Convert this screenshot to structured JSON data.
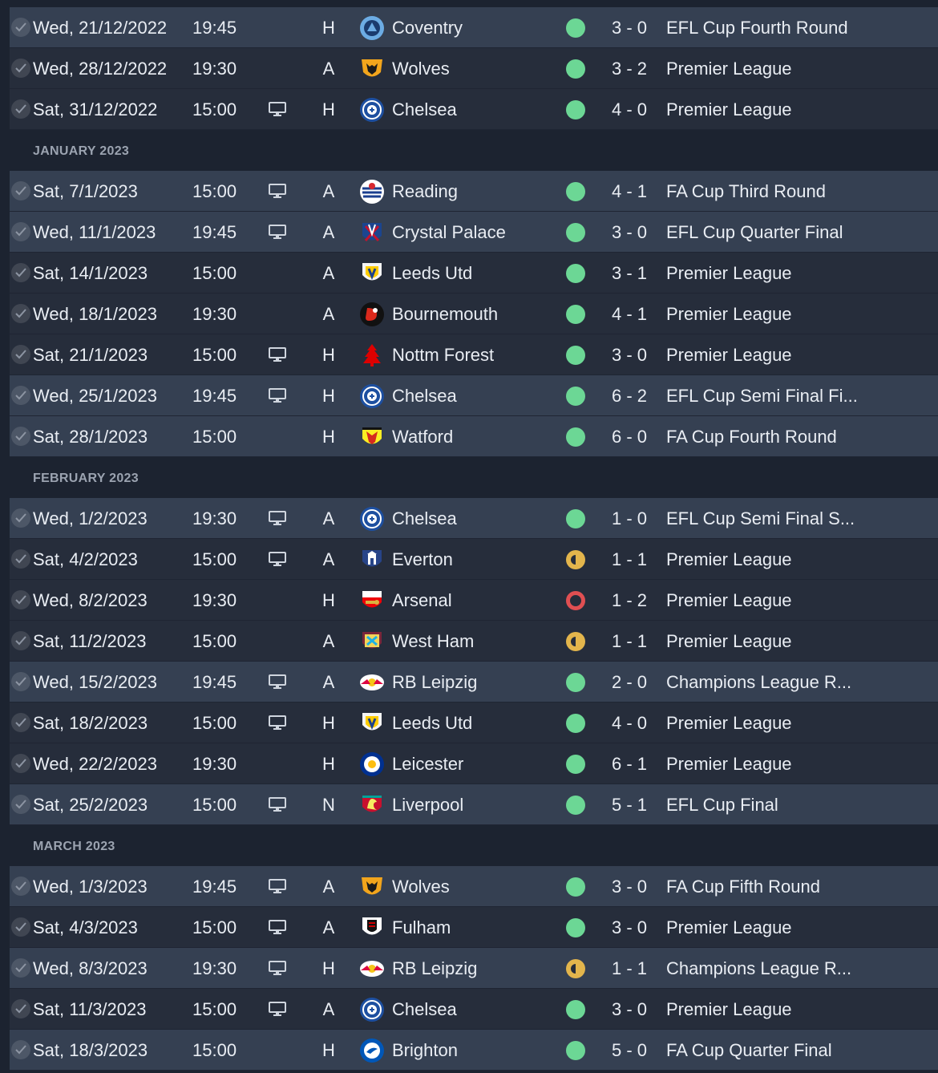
{
  "colors": {
    "win": "#6cd795",
    "draw": "#e3b54c",
    "loss": "#e04f52",
    "row": "#262d3b",
    "row_highlight": "#354052",
    "background": "#1c2330"
  },
  "entries": [
    {
      "kind": "match",
      "date": "Wed, 21/12/2022",
      "time": "19:45",
      "tv": false,
      "venue": "H",
      "crest": "coventry-crest",
      "team": "Coventry",
      "result": "win",
      "score": "3 - 0",
      "competition": "EFL Cup Fourth Round",
      "highlight": true
    },
    {
      "kind": "match",
      "date": "Wed, 28/12/2022",
      "time": "19:30",
      "tv": false,
      "venue": "A",
      "crest": "wolves-crest",
      "team": "Wolves",
      "result": "win",
      "score": "3 - 2",
      "competition": "Premier League",
      "highlight": false
    },
    {
      "kind": "match",
      "date": "Sat, 31/12/2022",
      "time": "15:00",
      "tv": true,
      "venue": "H",
      "crest": "chelsea-crest",
      "team": "Chelsea",
      "result": "win",
      "score": "4 - 0",
      "competition": "Premier League",
      "highlight": false
    },
    {
      "kind": "header",
      "label": "JANUARY 2023"
    },
    {
      "kind": "match",
      "date": "Sat, 7/1/2023",
      "time": "15:00",
      "tv": true,
      "venue": "A",
      "crest": "reading-crest",
      "team": "Reading",
      "result": "win",
      "score": "4 - 1",
      "competition": "FA Cup Third Round",
      "highlight": true
    },
    {
      "kind": "match",
      "date": "Wed, 11/1/2023",
      "time": "19:45",
      "tv": true,
      "venue": "A",
      "crest": "crystal-palace-crest",
      "team": "Crystal Palace",
      "result": "win",
      "score": "3 - 0",
      "competition": "EFL Cup Quarter Final",
      "highlight": true
    },
    {
      "kind": "match",
      "date": "Sat, 14/1/2023",
      "time": "15:00",
      "tv": false,
      "venue": "A",
      "crest": "leeds-crest",
      "team": "Leeds Utd",
      "result": "win",
      "score": "3 - 1",
      "competition": "Premier League",
      "highlight": false
    },
    {
      "kind": "match",
      "date": "Wed, 18/1/2023",
      "time": "19:30",
      "tv": false,
      "venue": "A",
      "crest": "bournemouth-crest",
      "team": "Bournemouth",
      "result": "win",
      "score": "4 - 1",
      "competition": "Premier League",
      "highlight": false
    },
    {
      "kind": "match",
      "date": "Sat, 21/1/2023",
      "time": "15:00",
      "tv": true,
      "venue": "H",
      "crest": "nottm-forest-crest",
      "team": "Nottm Forest",
      "result": "win",
      "score": "3 - 0",
      "competition": "Premier League",
      "highlight": false
    },
    {
      "kind": "match",
      "date": "Wed, 25/1/2023",
      "time": "19:45",
      "tv": true,
      "venue": "H",
      "crest": "chelsea-crest",
      "team": "Chelsea",
      "result": "win",
      "score": "6 - 2",
      "competition": "EFL Cup Semi Final Fi...",
      "highlight": true
    },
    {
      "kind": "match",
      "date": "Sat, 28/1/2023",
      "time": "15:00",
      "tv": false,
      "venue": "H",
      "crest": "watford-crest",
      "team": "Watford",
      "result": "win",
      "score": "6 - 0",
      "competition": "FA Cup Fourth Round",
      "highlight": true
    },
    {
      "kind": "header",
      "label": "FEBRUARY 2023"
    },
    {
      "kind": "match",
      "date": "Wed, 1/2/2023",
      "time": "19:30",
      "tv": true,
      "venue": "A",
      "crest": "chelsea-crest",
      "team": "Chelsea",
      "result": "win",
      "score": "1 - 0",
      "competition": "EFL Cup Semi Final S...",
      "highlight": true
    },
    {
      "kind": "match",
      "date": "Sat, 4/2/2023",
      "time": "15:00",
      "tv": true,
      "venue": "A",
      "crest": "everton-crest",
      "team": "Everton",
      "result": "draw",
      "score": "1 - 1",
      "competition": "Premier League",
      "highlight": false
    },
    {
      "kind": "match",
      "date": "Wed, 8/2/2023",
      "time": "19:30",
      "tv": false,
      "venue": "H",
      "crest": "arsenal-crest",
      "team": "Arsenal",
      "result": "loss",
      "score": "1 - 2",
      "competition": "Premier League",
      "highlight": false
    },
    {
      "kind": "match",
      "date": "Sat, 11/2/2023",
      "time": "15:00",
      "tv": false,
      "venue": "A",
      "crest": "west-ham-crest",
      "team": "West Ham",
      "result": "draw",
      "score": "1 - 1",
      "competition": "Premier League",
      "highlight": false
    },
    {
      "kind": "match",
      "date": "Wed, 15/2/2023",
      "time": "19:45",
      "tv": true,
      "venue": "A",
      "crest": "rb-leipzig-crest",
      "team": "RB Leipzig",
      "result": "win",
      "score": "2 - 0",
      "competition": "Champions League R...",
      "highlight": true
    },
    {
      "kind": "match",
      "date": "Sat, 18/2/2023",
      "time": "15:00",
      "tv": true,
      "venue": "H",
      "crest": "leeds-crest",
      "team": "Leeds Utd",
      "result": "win",
      "score": "4 - 0",
      "competition": "Premier League",
      "highlight": false
    },
    {
      "kind": "match",
      "date": "Wed, 22/2/2023",
      "time": "19:30",
      "tv": false,
      "venue": "H",
      "crest": "leicester-crest",
      "team": "Leicester",
      "result": "win",
      "score": "6 - 1",
      "competition": "Premier League",
      "highlight": false
    },
    {
      "kind": "match",
      "date": "Sat, 25/2/2023",
      "time": "15:00",
      "tv": true,
      "venue": "N",
      "crest": "liverpool-crest",
      "team": "Liverpool",
      "result": "win",
      "score": "5 - 1",
      "competition": "EFL Cup Final",
      "highlight": true
    },
    {
      "kind": "header",
      "label": "MARCH 2023"
    },
    {
      "kind": "match",
      "date": "Wed, 1/3/2023",
      "time": "19:45",
      "tv": true,
      "venue": "A",
      "crest": "wolves-crest",
      "team": "Wolves",
      "result": "win",
      "score": "3 - 0",
      "competition": "FA Cup Fifth Round",
      "highlight": true
    },
    {
      "kind": "match",
      "date": "Sat, 4/3/2023",
      "time": "15:00",
      "tv": true,
      "venue": "A",
      "crest": "fulham-crest",
      "team": "Fulham",
      "result": "win",
      "score": "3 - 0",
      "competition": "Premier League",
      "highlight": false
    },
    {
      "kind": "match",
      "date": "Wed, 8/3/2023",
      "time": "19:30",
      "tv": true,
      "venue": "H",
      "crest": "rb-leipzig-crest",
      "team": "RB Leipzig",
      "result": "draw",
      "score": "1 - 1",
      "competition": "Champions League R...",
      "highlight": true
    },
    {
      "kind": "match",
      "date": "Sat, 11/3/2023",
      "time": "15:00",
      "tv": true,
      "venue": "A",
      "crest": "chelsea-crest",
      "team": "Chelsea",
      "result": "win",
      "score": "3 - 0",
      "competition": "Premier League",
      "highlight": false
    },
    {
      "kind": "match",
      "date": "Sat, 18/3/2023",
      "time": "15:00",
      "tv": false,
      "venue": "H",
      "crest": "brighton-crest",
      "team": "Brighton",
      "result": "win",
      "score": "5 - 0",
      "competition": "FA Cup Quarter Final",
      "highlight": true
    }
  ]
}
